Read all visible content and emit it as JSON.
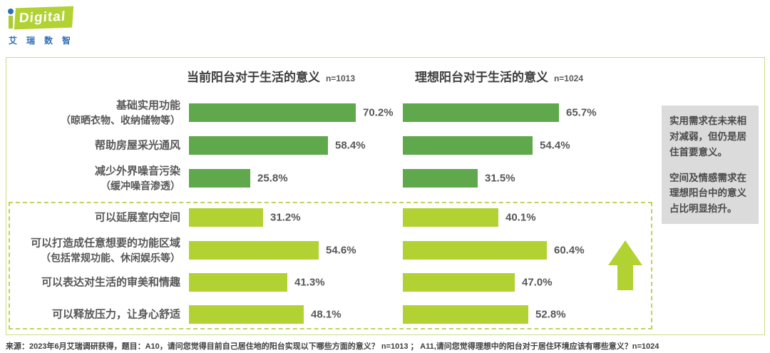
{
  "logo": {
    "brand": "Digital",
    "subtext": "艾瑞数智"
  },
  "colors": {
    "dark_green": "#5fa84b",
    "light_green": "#b2d234",
    "border_green": "#cbdd83",
    "dashed_green": "#bcd55e",
    "logo_blue": "#2f6eb5",
    "annotation_bg": "#dbdbdb",
    "text_gray": "#595757"
  },
  "chart_data": {
    "type": "bar",
    "orientation": "horizontal",
    "categories": [
      {
        "main": "基础实用功能",
        "sub": "（晾晒衣物、收纳储物等）"
      },
      {
        "main": "帮助房屋采光通风",
        "sub": ""
      },
      {
        "main": "减少外界噪音污染",
        "sub": "（缓冲噪音渗透）"
      },
      {
        "main": "可以延展室内空间",
        "sub": ""
      },
      {
        "main": "可以打造成任意想要的功能区域",
        "sub": "（包括常规功能、休闲娱乐等）"
      },
      {
        "main": "可以表达对生活的审美和情趣",
        "sub": ""
      },
      {
        "main": "可以释放压力，让身心舒适",
        "sub": ""
      }
    ],
    "charts": [
      {
        "title": "当前阳台对于生活的意义",
        "n_label": "n=1013",
        "values": [
          70.2,
          58.4,
          25.8,
          31.2,
          54.6,
          41.3,
          48.1
        ],
        "value_labels": [
          "70.2%",
          "58.4%",
          "25.8%",
          "31.2%",
          "54.6%",
          "41.3%",
          "48.1%"
        ]
      },
      {
        "title": "理想阳台对于生活的意义",
        "n_label": "n=1024",
        "values": [
          65.7,
          54.4,
          31.5,
          40.1,
          60.4,
          47.0,
          52.8
        ],
        "value_labels": [
          "65.7%",
          "54.4%",
          "31.5%",
          "40.1%",
          "60.4%",
          "47.0%",
          "52.8%"
        ]
      }
    ],
    "groups": {
      "practical_row_indexes": [
        0,
        1,
        2
      ],
      "emotional_row_indexes": [
        3,
        4,
        5,
        6
      ]
    },
    "xlim": [
      0,
      100
    ],
    "grid": false,
    "legend": "none"
  },
  "annotation": {
    "paragraph1": "实用需求在未来相对减弱，但仍是居住首要意义。",
    "paragraph2": "空间及情感需求在理想阳台中的意义占比明显抬升。"
  },
  "footer": {
    "source": "来源：2023年6月艾瑞调研获得，题目：A10，请问您觉得目前自己居住地的阳台实现以下哪些方面的意义？ n=1013 ； A11,请问您觉得理想中的阳台对于居住环境应该有哪些意义？n=1024"
  }
}
